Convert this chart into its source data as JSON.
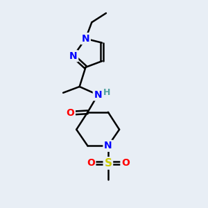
{
  "background_color": "#e8eef5",
  "line_color": "#000000",
  "bond_width": 1.8,
  "atom_colors": {
    "N": "#0000ff",
    "O": "#ff0000",
    "S": "#cccc00",
    "H": "#4fa0a0",
    "C": "#000000"
  }
}
